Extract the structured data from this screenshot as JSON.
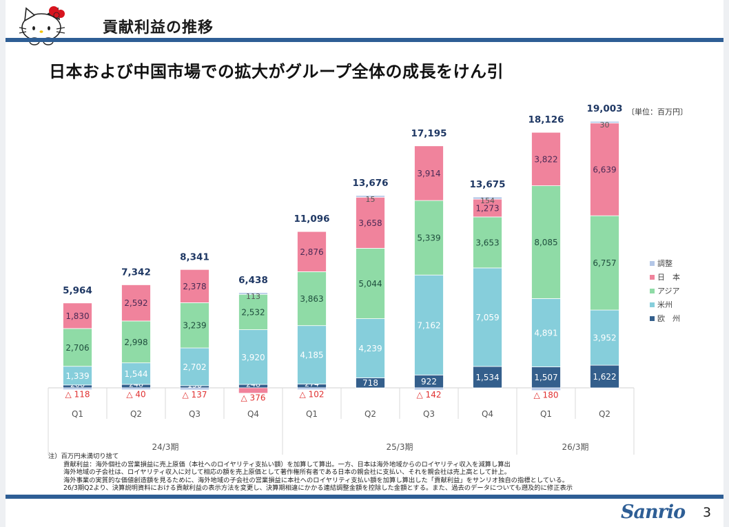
{
  "header": {
    "title": "貢献利益の推移",
    "mascot": "hello-kitty-mascot"
  },
  "subtitle": "日本および中国市場での拡大がグループ全体の成長をけん引",
  "unit_label": "〔単位：百万円〕",
  "colors": {
    "header_bar": "#2e5e95",
    "adjust": "#b4c7e7",
    "japan": "#f0839c",
    "asia": "#8fdba6",
    "americas": "#86cedb",
    "europe": "#345f8c",
    "negative_text": "#e03030",
    "total_text": "#1f3864"
  },
  "chart_data": {
    "type": "bar",
    "stacked": true,
    "title": "貢献利益の推移",
    "xlabel": "",
    "ylabel": "",
    "unit": "百万円",
    "categories": [
      "Q1",
      "Q2",
      "Q3",
      "Q4",
      "Q1",
      "Q2",
      "Q3",
      "Q4",
      "Q1",
      "Q2"
    ],
    "periods": [
      {
        "label": "24/3期",
        "quarters": 4
      },
      {
        "label": "25/3期",
        "quarters": 4
      },
      {
        "label": "26/3期",
        "quarters": 2
      }
    ],
    "totals": [
      5964,
      7342,
      8341,
      6438,
      11096,
      13676,
      17195,
      13675,
      18126,
      19003
    ],
    "totals_labels": [
      "5,964",
      "7,342",
      "8,341",
      "6,438",
      "11,096",
      "13,676",
      "17,195",
      "13,675",
      "18,126",
      "19,003"
    ],
    "series": [
      {
        "name": "欧　州",
        "key": "europe",
        "values": [
          206,
          248,
          158,
          248,
          274,
          718,
          922,
          1534,
          1507,
          1622
        ],
        "labels": [
          "206",
          "248",
          "158",
          "248",
          "274",
          "718",
          "922",
          "1,534",
          "1,507",
          "1,622"
        ]
      },
      {
        "name": "米州",
        "key": "americas",
        "values": [
          1339,
          1544,
          2702,
          3920,
          4185,
          4239,
          7162,
          7059,
          4891,
          3952
        ],
        "labels": [
          "1,339",
          "1,544",
          "2,702",
          "3,920",
          "4,185",
          "4,239",
          "7,162",
          "7,059",
          "4,891",
          "3,952"
        ]
      },
      {
        "name": "アジア",
        "key": "asia",
        "values": [
          2706,
          2998,
          3239,
          2532,
          3863,
          5044,
          5339,
          3653,
          8085,
          6757
        ],
        "labels": [
          "2,706",
          "2,998",
          "3,239",
          "2,532",
          "3,863",
          "5,044",
          "5,339",
          "3,653",
          "8,085",
          "6,757"
        ]
      },
      {
        "name": "日　本",
        "key": "japan",
        "values": [
          1830,
          2592,
          2378,
          -376,
          2876,
          3658,
          3914,
          1273,
          3822,
          6639
        ],
        "labels": [
          "1,830",
          "2,592",
          "2,378",
          "△ 376",
          "2,876",
          "3,658",
          "3,914",
          "1,273",
          "3,822",
          "6,639"
        ]
      },
      {
        "name": "調整",
        "key": "adjust",
        "values": [
          -118,
          -40,
          -137,
          113,
          -102,
          15,
          -142,
          154,
          -180,
          30
        ],
        "labels": [
          "△ 118",
          "△ 40",
          "△ 137",
          "113",
          "△ 102",
          "15",
          "△ 142",
          "154",
          "△ 180",
          "30"
        ]
      }
    ],
    "legend": [
      "調整",
      "日　本",
      "アジア",
      "米州",
      "欧　州"
    ],
    "legend_position": "right",
    "grid": false
  },
  "notes": [
    "注）百万円未満切り捨て",
    "貢献利益：海外個社の営業損益に売上原価（本社へのロイヤリティ支払い額）を加算して算出。一方、日本は海外地域からのロイヤリティ収入を減算し算出",
    "海外地域の子会社は、ロイヤリティ収入に対して相応の額を売上原価として著作権所有者である日本の親会社に支払い、それを親会社は売上高として計上。",
    "海外事業の実質的な価値創造額を見るために、海外地域の子会社の営業損益に本社へのロイヤリティ支払い額を加算し算出した「貢献利益」をサンリオ独自の指標としている。",
    "26/3期Q2より、決算説明資料における貢献利益の表示方法を変更し、決算期相違にかかる連結調整金額を控除した金額とする。また、過去のデータについても遡及的に修正表示"
  ],
  "footer": {
    "logo": "Sanrio",
    "page_number": "3"
  }
}
